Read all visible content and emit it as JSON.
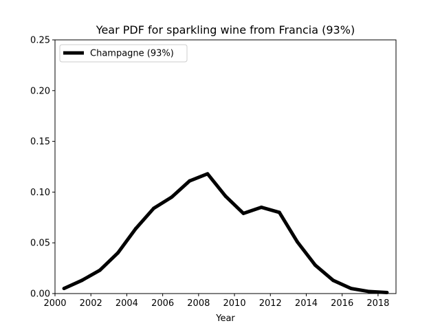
{
  "chart_data": {
    "type": "line",
    "title": "Year PDF for sparkling wine from Francia (93%)",
    "xlabel": "Year",
    "ylabel": "",
    "xlim": [
      2000,
      2019
    ],
    "ylim": [
      0,
      0.25
    ],
    "xticks": [
      2000,
      2002,
      2004,
      2006,
      2008,
      2010,
      2012,
      2014,
      2016,
      2018
    ],
    "xtick_labels": [
      "2000",
      "2002",
      "2004",
      "2006",
      "2008",
      "2010",
      "2012",
      "2014",
      "2016",
      "2018"
    ],
    "yticks": [
      0,
      0.05,
      0.1,
      0.15,
      0.2,
      0.25
    ],
    "ytick_labels": [
      "0.00",
      "0.05",
      "0.10",
      "0.15",
      "0.20",
      "0.25"
    ],
    "grid": false,
    "legend": {
      "placement": "upper-left"
    },
    "series": [
      {
        "name": "Champagne (93%)",
        "color": "#000000",
        "x": [
          2000.5,
          2001.5,
          2002.5,
          2003.5,
          2004.5,
          2005.5,
          2006.5,
          2007.5,
          2008.5,
          2009.5,
          2010.5,
          2011.5,
          2012.5,
          2013.5,
          2014.5,
          2015.5,
          2016.5,
          2017.5,
          2018.5
        ],
        "y": [
          0.005,
          0.013,
          0.023,
          0.04,
          0.064,
          0.084,
          0.095,
          0.111,
          0.118,
          0.096,
          0.079,
          0.085,
          0.08,
          0.051,
          0.028,
          0.013,
          0.005,
          0.002,
          0.001
        ]
      }
    ]
  }
}
